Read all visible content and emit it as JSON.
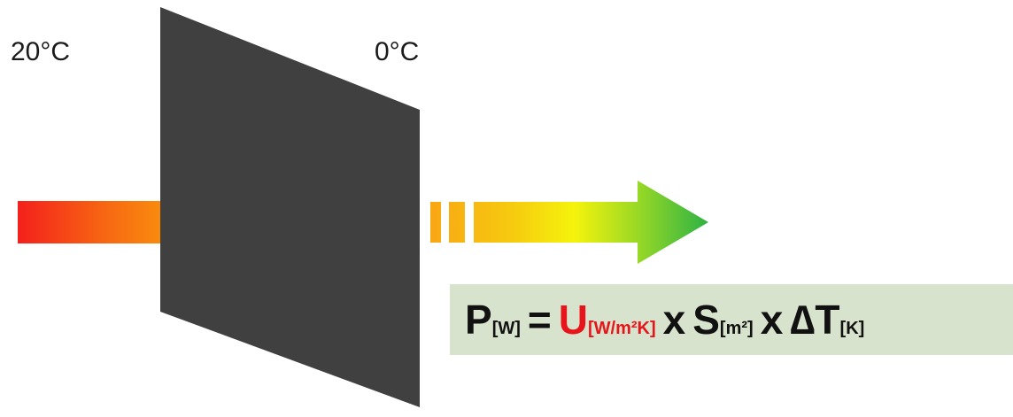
{
  "labels": {
    "inside_temp": "20°C",
    "outside_temp": "0°C"
  },
  "formula": {
    "power_symbol": "P",
    "power_unit": "[W]",
    "equals": "=",
    "u_symbol": "U",
    "u_unit": "[W/m²K]",
    "times_1": "x",
    "s_symbol": "S",
    "s_unit": "[m²]",
    "times_2": "x",
    "delta_t_symbol": "∆T",
    "delta_t_unit": "[K]"
  },
  "caption": "",
  "colors": {
    "wall": "#404040",
    "formula_background": "#d7e3cc",
    "u_value_highlight": "#e8141b",
    "arrow_gradient_in": [
      "#f4201c",
      "#f76a12",
      "#fba40a",
      "#ffba00"
    ],
    "arrow_gradient_out": [
      "#f9a614",
      "#f6cb0f",
      "#f5f30c",
      "#98d826",
      "#2db244"
    ]
  }
}
